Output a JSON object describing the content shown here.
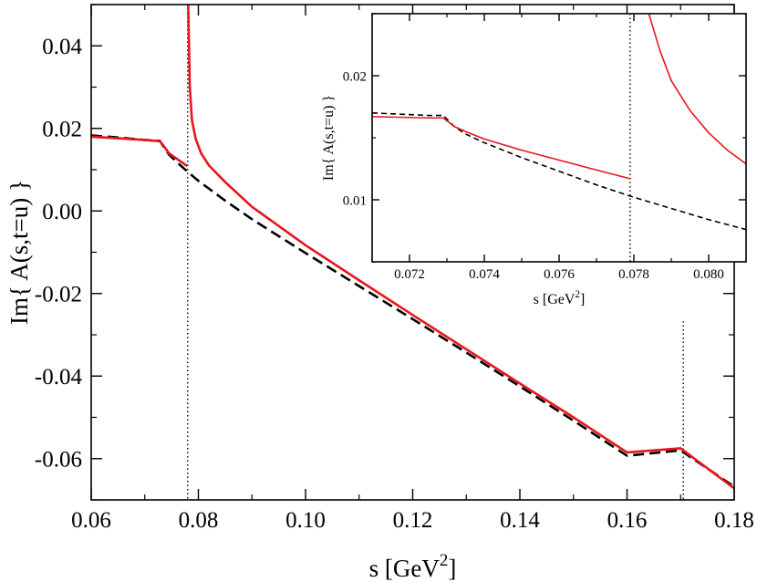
{
  "chart_data": [
    {
      "type": "line",
      "panel": "main",
      "xlabel_base": "s [GeV",
      "xlabel_sup": "2",
      "xlabel_end": "]",
      "ylabel": "Im{ A(s,t=u) }",
      "xlim": [
        0.06,
        0.18
      ],
      "ylim": [
        -0.07,
        0.05
      ],
      "xticks": [
        0.06,
        0.08,
        0.1,
        0.12,
        0.14,
        0.16,
        0.18
      ],
      "xtick_labels": [
        "0.06",
        "0.08",
        "0.10",
        "0.12",
        "0.14",
        "0.16",
        "0.18"
      ],
      "yticks": [
        -0.06,
        -0.04,
        -0.02,
        0.0,
        0.02,
        0.04
      ],
      "ytick_labels": [
        "-0.06",
        "-0.04",
        "-0.02",
        "0.00",
        "0.02",
        "0.04"
      ],
      "vlines": [
        0.078,
        0.1705
      ],
      "series": [
        {
          "name": "dashed",
          "color": "#000000",
          "style": "dashed",
          "segments": [
            [
              [
                0.06,
                0.0183
              ],
              [
                0.065,
                0.0178
              ],
              [
                0.07,
                0.0172
              ],
              [
                0.0728,
                0.017
              ],
              [
                0.0735,
                0.0156
              ],
              [
                0.0745,
                0.0137
              ],
              [
                0.076,
                0.0118
              ],
              [
                0.078,
                0.0095
              ],
              [
                0.08,
                0.0073
              ],
              [
                0.085,
                0.0025
              ],
              [
                0.09,
                -0.002
              ],
              [
                0.1,
                -0.0102
              ],
              [
                0.11,
                -0.0182
              ],
              [
                0.12,
                -0.0262
              ],
              [
                0.13,
                -0.0343
              ],
              [
                0.14,
                -0.0425
              ],
              [
                0.15,
                -0.0508
              ],
              [
                0.16,
                -0.0593
              ],
              [
                0.17,
                -0.058
              ],
              [
                0.18,
                -0.0668
              ]
            ]
          ]
        },
        {
          "name": "solid",
          "color": "#e8151b",
          "style": "solid",
          "segments": [
            [
              [
                0.06,
                0.018
              ],
              [
                0.065,
                0.0176
              ],
              [
                0.07,
                0.0172
              ],
              [
                0.0728,
                0.0169
              ],
              [
                0.0735,
                0.0158
              ],
              [
                0.0745,
                0.014
              ],
              [
                0.076,
                0.0126
              ],
              [
                0.0779,
                0.0109
              ]
            ],
            [
              [
                0.0781,
                0.05
              ],
              [
                0.0784,
                0.03
              ],
              [
                0.0788,
                0.022
              ],
              [
                0.0795,
                0.0175
              ],
              [
                0.0805,
                0.014
              ],
              [
                0.082,
                0.011
              ],
              [
                0.085,
                0.007
              ],
              [
                0.09,
                0.001
              ],
              [
                0.1,
                -0.0083
              ],
              [
                0.11,
                -0.0168
              ],
              [
                0.12,
                -0.0252
              ],
              [
                0.13,
                -0.0335
              ],
              [
                0.14,
                -0.0418
              ],
              [
                0.15,
                -0.05
              ],
              [
                0.16,
                -0.0585
              ],
              [
                0.17,
                -0.0575
              ],
              [
                0.18,
                -0.0672
              ]
            ]
          ]
        }
      ]
    },
    {
      "type": "line",
      "panel": "inset",
      "xlabel_base": "s [GeV",
      "xlabel_sup": "2",
      "xlabel_end": "]",
      "ylabel": "Im{ A(s,t=u) }",
      "xlim": [
        0.071,
        0.081
      ],
      "ylim": [
        0.005,
        0.025
      ],
      "xticks": [
        0.072,
        0.074,
        0.076,
        0.078,
        0.08
      ],
      "xtick_labels": [
        "0.072",
        "0.074",
        "0.076",
        "0.078",
        "0.080"
      ],
      "yticks": [
        0.01,
        0.02
      ],
      "ytick_labels": [
        "0.01",
        "0.02"
      ],
      "vlines": [
        0.0779
      ],
      "series": [
        {
          "name": "dashed",
          "color": "#000000",
          "style": "dashed",
          "segments": [
            [
              [
                0.071,
                0.017
              ],
              [
                0.0725,
                0.0168
              ],
              [
                0.0729,
                0.0168
              ],
              [
                0.0732,
                0.0159
              ],
              [
                0.0735,
                0.0153
              ],
              [
                0.074,
                0.0146
              ],
              [
                0.075,
                0.0134
              ],
              [
                0.076,
                0.0123
              ],
              [
                0.077,
                0.0112
              ],
              [
                0.078,
                0.0102
              ],
              [
                0.079,
                0.0093
              ],
              [
                0.08,
                0.0084
              ],
              [
                0.081,
                0.0076
              ]
            ]
          ]
        },
        {
          "name": "solid",
          "color": "#e8151b",
          "style": "solid",
          "segments": [
            [
              [
                0.071,
                0.0167
              ],
              [
                0.0725,
                0.0166
              ],
              [
                0.0729,
                0.0166
              ],
              [
                0.0732,
                0.0159
              ],
              [
                0.0735,
                0.0155
              ],
              [
                0.074,
                0.0149
              ],
              [
                0.075,
                0.014
              ],
              [
                0.076,
                0.0132
              ],
              [
                0.077,
                0.0124
              ],
              [
                0.0779,
                0.0117
              ]
            ],
            [
              [
                0.0784,
                0.025
              ],
              [
                0.0787,
                0.022
              ],
              [
                0.079,
                0.0196
              ],
              [
                0.0795,
                0.0172
              ],
              [
                0.08,
                0.0154
              ],
              [
                0.0805,
                0.014
              ],
              [
                0.081,
                0.0129
              ]
            ]
          ]
        }
      ]
    }
  ]
}
